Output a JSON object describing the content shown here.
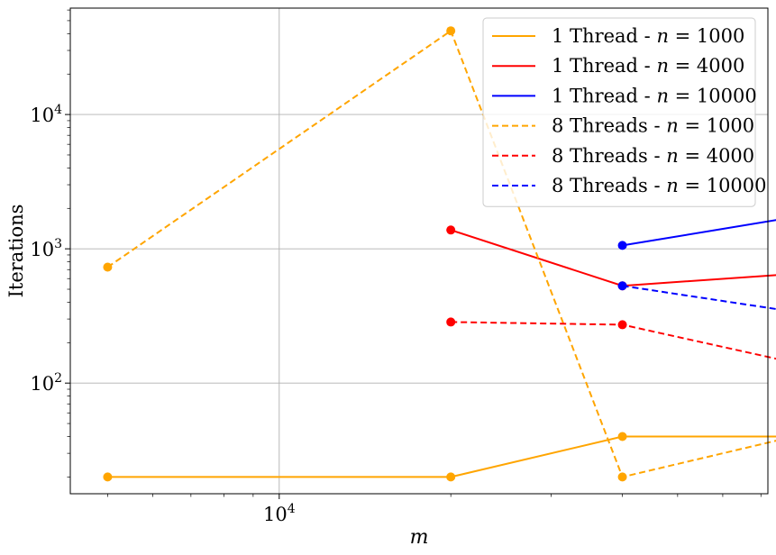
{
  "chart_data": {
    "type": "line",
    "title": "",
    "xlabel": "m",
    "ylabel": "Iterations",
    "xscale": "log",
    "yscale": "log",
    "xlim": [
      4300,
      72000
    ],
    "ylim": [
      15,
      62000
    ],
    "x_ticks": [
      {
        "value": 10000,
        "base": "10",
        "exp": "4"
      }
    ],
    "y_ticks": [
      {
        "value": 100,
        "base": "10",
        "exp": "2"
      },
      {
        "value": 1000,
        "base": "10",
        "exp": "3"
      },
      {
        "value": 10000,
        "base": "10",
        "exp": "4"
      }
    ],
    "grid": true,
    "legend_position": "top-right",
    "series": [
      {
        "name": "1 Thread - n = 1000",
        "label_prefix": "1 Thread - ",
        "label_var": "n",
        "label_value": " = 1000",
        "color": "#ffa500",
        "dash": "solid",
        "x": [
          5000,
          20000,
          40000,
          80000
        ],
        "y": [
          20,
          20,
          40,
          40
        ]
      },
      {
        "name": "1 Thread - n = 4000",
        "label_prefix": "1 Thread - ",
        "label_var": "n",
        "label_value": " = 4000",
        "color": "#ff0000",
        "dash": "solid",
        "x": [
          20000,
          40000,
          80000
        ],
        "y": [
          1380,
          530,
          650
        ]
      },
      {
        "name": "1 Thread - n = 10000",
        "label_prefix": "1 Thread - ",
        "label_var": "n",
        "label_value": " = 10000",
        "color": "#0000ff",
        "dash": "solid",
        "x": [
          40000,
          80000
        ],
        "y": [
          1060,
          1720
        ]
      },
      {
        "name": "8 Threads - n = 1000",
        "label_prefix": "8 Threads - ",
        "label_var": "n",
        "label_value": " = 1000",
        "color": "#ffa500",
        "dash": "dashed",
        "x": [
          5000,
          20000,
          40000,
          80000
        ],
        "y": [
          730,
          42000,
          20,
          40
        ]
      },
      {
        "name": "8 Threads - n = 4000",
        "label_prefix": "8 Threads - ",
        "label_var": "n",
        "label_value": " = 4000",
        "color": "#ff0000",
        "dash": "dashed",
        "x": [
          20000,
          40000,
          80000
        ],
        "y": [
          285,
          272,
          142
        ]
      },
      {
        "name": "8 Threads - n = 10000",
        "label_prefix": "8 Threads - ",
        "label_var": "n",
        "label_value": " = 10000",
        "color": "#0000ff",
        "dash": "dashed",
        "x": [
          40000,
          80000
        ],
        "y": [
          530,
          340
        ]
      }
    ]
  }
}
